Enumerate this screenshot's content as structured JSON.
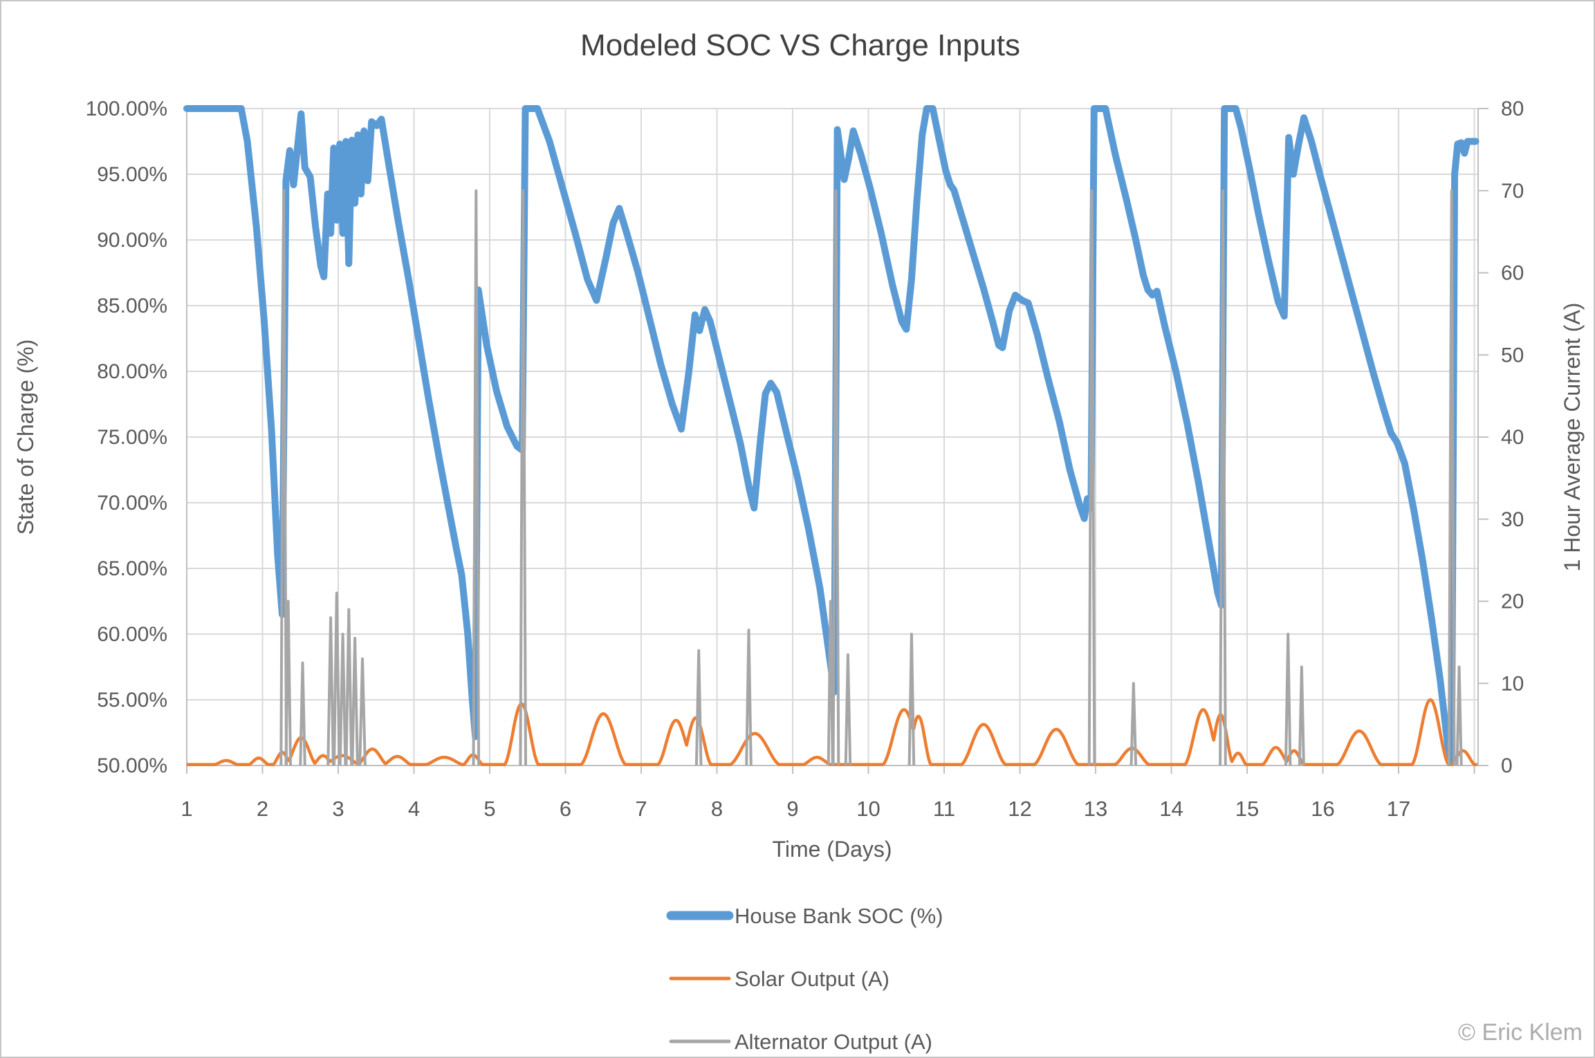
{
  "watermark": "© Eric Klem",
  "colors": {
    "soc_blue": "#5B9BD5",
    "solar_orange": "#ED7D31",
    "alternator_gray": "#A6A6A6",
    "gridline": "#D9D9D9",
    "axis_line": "#BFBFBF",
    "text_gray": "#595959",
    "title_gray": "#404040",
    "watermark_gray": "#ABABAB",
    "background": "#FFFFFF"
  },
  "chart_data": {
    "type": "line",
    "title": "Modeled SOC VS Charge Inputs",
    "x_axis": {
      "title": "Time (Days)",
      "min": 1,
      "max": 18.05,
      "tick_labels": [
        "1",
        "2",
        "3",
        "4",
        "5",
        "6",
        "7",
        "8",
        "9",
        "10",
        "11",
        "12",
        "13",
        "14",
        "15",
        "16",
        "17"
      ]
    },
    "y_left": {
      "label": "State of Charge (%)",
      "min": 50,
      "max": 100,
      "step": 5,
      "tick_labels": [
        "100.00%",
        "95.00%",
        "90.00%",
        "85.00%",
        "80.00%",
        "75.00%",
        "70.00%",
        "65.00%",
        "60.00%",
        "55.00%",
        "50.00%"
      ]
    },
    "y_right": {
      "label": "1 Hour Average Current (A)",
      "min": 0,
      "max": 80,
      "step": 10,
      "tick_labels": [
        "80",
        "70",
        "60",
        "50",
        "40",
        "30",
        "20",
        "10",
        "0"
      ]
    },
    "grid": true,
    "legend_position": "bottom",
    "series": [
      {
        "name": "House Bank SOC (%)",
        "axis": "left",
        "color": "#5B9BD5",
        "stroke_width": 10,
        "legend_stroke_width": 13,
        "points": [
          [
            1.0,
            100
          ],
          [
            1.72,
            100
          ],
          [
            1.8,
            97.5
          ],
          [
            1.92,
            91
          ],
          [
            2.02,
            84
          ],
          [
            2.12,
            75.5
          ],
          [
            2.2,
            66
          ],
          [
            2.26,
            61.5
          ],
          [
            2.31,
            94.5
          ],
          [
            2.36,
            96.8
          ],
          [
            2.41,
            94.2
          ],
          [
            2.47,
            97.5
          ],
          [
            2.51,
            99.6
          ],
          [
            2.56,
            95.5
          ],
          [
            2.63,
            94.8
          ],
          [
            2.7,
            91
          ],
          [
            2.77,
            88
          ],
          [
            2.81,
            87.2
          ],
          [
            2.86,
            93.5
          ],
          [
            2.9,
            90.5
          ],
          [
            2.94,
            97
          ],
          [
            2.98,
            91.5
          ],
          [
            3.02,
            97.3
          ],
          [
            3.06,
            90.5
          ],
          [
            3.1,
            97.5
          ],
          [
            3.14,
            88.2
          ],
          [
            3.18,
            97.6
          ],
          [
            3.22,
            92.8
          ],
          [
            3.26,
            98
          ],
          [
            3.3,
            93.5
          ],
          [
            3.34,
            98.3
          ],
          [
            3.39,
            94.5
          ],
          [
            3.44,
            99
          ],
          [
            3.51,
            98.7
          ],
          [
            3.57,
            99.2
          ],
          [
            3.66,
            96
          ],
          [
            3.79,
            91.5
          ],
          [
            3.93,
            87
          ],
          [
            4.06,
            82.5
          ],
          [
            4.19,
            78
          ],
          [
            4.33,
            73.5
          ],
          [
            4.46,
            69.5
          ],
          [
            4.56,
            66.5
          ],
          [
            4.63,
            64.5
          ],
          [
            4.71,
            60
          ],
          [
            4.77,
            55
          ],
          [
            4.81,
            52.2
          ],
          [
            4.85,
            86.2
          ],
          [
            4.96,
            82
          ],
          [
            5.09,
            78.5
          ],
          [
            5.23,
            75.8
          ],
          [
            5.36,
            74.3
          ],
          [
            5.43,
            74
          ],
          [
            5.47,
            100
          ],
          [
            5.63,
            100
          ],
          [
            5.79,
            97.5
          ],
          [
            5.96,
            94
          ],
          [
            6.13,
            90.5
          ],
          [
            6.29,
            87
          ],
          [
            6.41,
            85.4
          ],
          [
            6.53,
            88.5
          ],
          [
            6.63,
            91.3
          ],
          [
            6.71,
            92.4
          ],
          [
            6.81,
            90.5
          ],
          [
            6.96,
            87.5
          ],
          [
            7.11,
            84
          ],
          [
            7.26,
            80.5
          ],
          [
            7.41,
            77.5
          ],
          [
            7.53,
            75.6
          ],
          [
            7.63,
            80
          ],
          [
            7.71,
            84.3
          ],
          [
            7.77,
            83.1
          ],
          [
            7.84,
            84.7
          ],
          [
            7.91,
            83.8
          ],
          [
            8.03,
            81
          ],
          [
            8.16,
            78
          ],
          [
            8.31,
            74.5
          ],
          [
            8.43,
            71
          ],
          [
            8.49,
            69.6
          ],
          [
            8.57,
            74.5
          ],
          [
            8.64,
            78.3
          ],
          [
            8.71,
            79.1
          ],
          [
            8.79,
            78.4
          ],
          [
            8.91,
            75.5
          ],
          [
            9.06,
            72
          ],
          [
            9.21,
            68
          ],
          [
            9.36,
            63.5
          ],
          [
            9.48,
            58.5
          ],
          [
            9.55,
            55.6
          ],
          [
            9.59,
            98.4
          ],
          [
            9.64,
            96.3
          ],
          [
            9.68,
            94.6
          ],
          [
            9.74,
            96.2
          ],
          [
            9.8,
            98.3
          ],
          [
            9.9,
            96.5
          ],
          [
            10.02,
            94
          ],
          [
            10.17,
            90.5
          ],
          [
            10.32,
            86.5
          ],
          [
            10.44,
            83.8
          ],
          [
            10.5,
            83.2
          ],
          [
            10.57,
            87
          ],
          [
            10.64,
            93
          ],
          [
            10.71,
            98
          ],
          [
            10.77,
            100
          ],
          [
            10.85,
            100
          ],
          [
            10.94,
            97.5
          ],
          [
            11.02,
            95.3
          ],
          [
            11.08,
            94.2
          ],
          [
            11.13,
            93.8
          ],
          [
            11.25,
            91.5
          ],
          [
            11.38,
            89
          ],
          [
            11.52,
            86.3
          ],
          [
            11.64,
            83.8
          ],
          [
            11.72,
            82
          ],
          [
            11.77,
            81.8
          ],
          [
            11.86,
            84.6
          ],
          [
            11.94,
            85.8
          ],
          [
            12.03,
            85.4
          ],
          [
            12.11,
            85.2
          ],
          [
            12.23,
            82.8
          ],
          [
            12.37,
            79.5
          ],
          [
            12.52,
            76.2
          ],
          [
            12.66,
            72.5
          ],
          [
            12.79,
            69.8
          ],
          [
            12.85,
            68.8
          ],
          [
            12.89,
            70.3
          ],
          [
            12.94,
            69.6
          ],
          [
            12.98,
            100
          ],
          [
            13.13,
            100
          ],
          [
            13.26,
            96.5
          ],
          [
            13.41,
            93
          ],
          [
            13.53,
            90
          ],
          [
            13.63,
            87.3
          ],
          [
            13.69,
            86.2
          ],
          [
            13.75,
            85.8
          ],
          [
            13.81,
            86.1
          ],
          [
            13.91,
            83.5
          ],
          [
            14.06,
            80
          ],
          [
            14.21,
            76
          ],
          [
            14.36,
            71.5
          ],
          [
            14.51,
            66.5
          ],
          [
            14.61,
            63.2
          ],
          [
            14.66,
            62.2
          ],
          [
            14.7,
            100
          ],
          [
            14.85,
            100
          ],
          [
            14.92,
            98.5
          ],
          [
            15.03,
            95.5
          ],
          [
            15.15,
            92
          ],
          [
            15.28,
            88.5
          ],
          [
            15.41,
            85.3
          ],
          [
            15.49,
            84.2
          ],
          [
            15.55,
            97.8
          ],
          [
            15.61,
            95
          ],
          [
            15.68,
            97.3
          ],
          [
            15.75,
            99.3
          ],
          [
            15.85,
            97.5
          ],
          [
            15.97,
            94.8
          ],
          [
            16.1,
            92
          ],
          [
            16.24,
            89
          ],
          [
            16.38,
            86
          ],
          [
            16.52,
            83
          ],
          [
            16.66,
            80
          ],
          [
            16.8,
            77.2
          ],
          [
            16.9,
            75.3
          ],
          [
            16.98,
            74.6
          ],
          [
            17.08,
            73
          ],
          [
            17.2,
            69.5
          ],
          [
            17.32,
            65.5
          ],
          [
            17.44,
            61
          ],
          [
            17.55,
            56.5
          ],
          [
            17.65,
            51.5
          ],
          [
            17.7,
            50.3
          ],
          [
            17.74,
            95
          ],
          [
            17.78,
            97.3
          ],
          [
            17.83,
            97.4
          ],
          [
            17.87,
            96.6
          ],
          [
            17.91,
            97.5
          ],
          [
            18.02,
            97.5
          ]
        ]
      },
      {
        "name": "Solar Output (A)",
        "axis": "right",
        "color": "#ED7D31",
        "stroke_width": 4.5,
        "legend_stroke_width": 5,
        "baseline": 0.12,
        "bumps": [
          [
            1.52,
            0.6,
            0.2
          ],
          [
            1.95,
            0.9,
            0.16
          ],
          [
            2.26,
            1.6,
            0.14
          ],
          [
            2.51,
            3.4,
            0.22
          ],
          [
            2.8,
            1.2,
            0.16
          ],
          [
            3.05,
            1.2,
            0.28
          ],
          [
            3.45,
            2.0,
            0.22
          ],
          [
            3.78,
            1.1,
            0.22
          ],
          [
            4.4,
            1.0,
            0.3
          ],
          [
            4.78,
            1.3,
            0.15
          ],
          [
            5.42,
            7.5,
            0.24
          ],
          [
            6.5,
            6.3,
            0.32
          ],
          [
            7.46,
            5.5,
            0.26
          ],
          [
            7.72,
            5.8,
            0.22
          ],
          [
            8.5,
            3.9,
            0.36
          ],
          [
            9.32,
            1.0,
            0.22
          ],
          [
            10.47,
            6.8,
            0.3
          ],
          [
            10.66,
            6.0,
            0.18
          ],
          [
            11.52,
            5.0,
            0.32
          ],
          [
            12.48,
            4.4,
            0.32
          ],
          [
            13.48,
            2.1,
            0.26
          ],
          [
            14.42,
            6.8,
            0.26
          ],
          [
            14.65,
            6.2,
            0.18
          ],
          [
            14.88,
            1.5,
            0.13
          ],
          [
            15.38,
            2.2,
            0.2
          ],
          [
            15.62,
            1.8,
            0.15
          ],
          [
            16.48,
            4.2,
            0.32
          ],
          [
            17.42,
            8.0,
            0.26
          ],
          [
            17.85,
            1.8,
            0.18
          ]
        ]
      },
      {
        "name": "Alternator Output (A)",
        "axis": "right",
        "color": "#A6A6A6",
        "stroke_width": 4,
        "legend_stroke_width": 5,
        "spikes": [
          [
            2.28,
            70,
            0.035
          ],
          [
            2.34,
            20,
            0.03
          ],
          [
            2.53,
            12.5,
            0.03
          ],
          [
            2.9,
            18,
            0.035
          ],
          [
            2.98,
            21,
            0.035
          ],
          [
            3.06,
            16,
            0.035
          ],
          [
            3.14,
            19,
            0.035
          ],
          [
            3.22,
            15.5,
            0.035
          ],
          [
            3.32,
            13,
            0.035
          ],
          [
            4.82,
            70,
            0.035
          ],
          [
            5.44,
            70,
            0.035
          ],
          [
            7.76,
            14,
            0.03
          ],
          [
            8.42,
            16.5,
            0.03
          ],
          [
            9.5,
            20,
            0.028
          ],
          [
            9.57,
            70,
            0.035
          ],
          [
            9.73,
            13.5,
            0.03
          ],
          [
            10.57,
            16,
            0.03
          ],
          [
            12.95,
            70,
            0.035
          ],
          [
            13.5,
            10,
            0.03
          ],
          [
            14.68,
            70,
            0.035
          ],
          [
            15.54,
            16,
            0.03
          ],
          [
            15.72,
            12,
            0.028
          ],
          [
            17.7,
            70,
            0.035
          ],
          [
            17.8,
            12,
            0.028
          ]
        ]
      }
    ]
  }
}
